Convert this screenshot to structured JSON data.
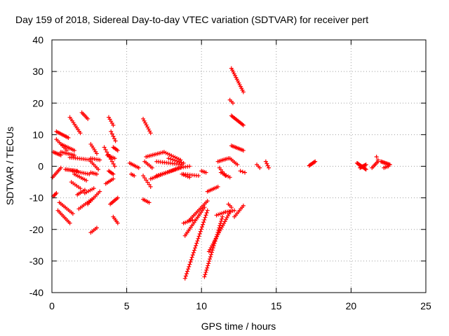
{
  "chart_data": {
    "type": "scatter",
    "title": "Day 159 of 2018, Sidereal Day-to-day VTEC variation (SDTVAR) for receiver pert",
    "xlabel": "GPS time / hours",
    "ylabel": "SDTVAR / TECUs",
    "xlim": [
      0,
      25
    ],
    "ylim": [
      -40,
      40
    ],
    "xticks": [
      0,
      5,
      10,
      15,
      20,
      25
    ],
    "xtick_labels": [
      "0",
      "5",
      "10",
      "15",
      "20",
      "25"
    ],
    "yticks": [
      -40,
      -30,
      -20,
      -10,
      0,
      10,
      20,
      30,
      40
    ],
    "ytick_labels": [
      "-40",
      "-30",
      "-20",
      "-10",
      "0",
      "10",
      "20",
      "30",
      "40"
    ],
    "grid": true,
    "marker": "+",
    "colors": {
      "series": "#ff0000",
      "axis": "#000000",
      "grid": "#a0a0a0"
    },
    "series": [
      {
        "name": "SDTVAR",
        "arcs": [
          {
            "x": [
              0.05,
              0.6
            ],
            "y": [
              -3.5,
              -0.5
            ],
            "n": 8
          },
          {
            "x": [
              0.1,
              0.6
            ],
            "y": [
              4.5,
              3.5
            ],
            "n": 7
          },
          {
            "x": [
              0.1,
              0.3
            ],
            "y": [
              -9.5,
              -8.5
            ],
            "n": 4
          },
          {
            "x": [
              0.3,
              1.1
            ],
            "y": [
              11.0,
              9.0
            ],
            "n": 10
          },
          {
            "x": [
              0.3,
              1.0
            ],
            "y": [
              8.5,
              5.0
            ],
            "n": 8
          },
          {
            "x": [
              0.4,
              1.2
            ],
            "y": [
              -14.0,
              -18.0
            ],
            "n": 10
          },
          {
            "x": [
              0.5,
              1.4
            ],
            "y": [
              -11.5,
              -15.0
            ],
            "n": 10
          },
          {
            "x": [
              0.6,
              1.5
            ],
            "y": [
              4.5,
              3.5
            ],
            "n": 10
          },
          {
            "x": [
              0.6,
              1.5
            ],
            "y": [
              7.0,
              5.0
            ],
            "n": 10
          },
          {
            "x": [
              0.9,
              1.7
            ],
            "y": [
              -1.0,
              -1.5
            ],
            "n": 10
          },
          {
            "x": [
              1.2,
              1.9
            ],
            "y": [
              15.5,
              10.5
            ],
            "n": 10
          },
          {
            "x": [
              1.2,
              2.6
            ],
            "y": [
              2.8,
              2.0
            ],
            "n": 12
          },
          {
            "x": [
              1.3,
              1.9
            ],
            "y": [
              -5.0,
              -7.0
            ],
            "n": 6
          },
          {
            "x": [
              1.4,
              2.5
            ],
            "y": [
              -1.5,
              -2.5
            ],
            "n": 10
          },
          {
            "x": [
              1.5,
              2.3
            ],
            "y": [
              -2.5,
              -4.5
            ],
            "n": 8
          },
          {
            "x": [
              1.7,
              2.2
            ],
            "y": [
              -9.0,
              -7.5
            ],
            "n": 6
          },
          {
            "x": [
              1.8,
              2.8
            ],
            "y": [
              -13.5,
              -10.0
            ],
            "n": 10
          },
          {
            "x": [
              2.0,
              2.4
            ],
            "y": [
              17.0,
              15.0
            ],
            "n": 6
          },
          {
            "x": [
              2.2,
              2.8
            ],
            "y": [
              -8.5,
              -7.0
            ],
            "n": 6
          },
          {
            "x": [
              2.4,
              3.2
            ],
            "y": [
              -12.0,
              -8.0
            ],
            "n": 9
          },
          {
            "x": [
              2.6,
              3.1
            ],
            "y": [
              1.5,
              -1.0
            ],
            "n": 6
          },
          {
            "x": [
              2.6,
              3.2
            ],
            "y": [
              2.5,
              2.0
            ],
            "n": 6
          },
          {
            "x": [
              2.6,
              3.0
            ],
            "y": [
              -2.0,
              -2.5
            ],
            "n": 5
          },
          {
            "x": [
              2.6,
              3.0
            ],
            "y": [
              7.0,
              4.0
            ],
            "n": 6
          },
          {
            "x": [
              2.6,
              3.0
            ],
            "y": [
              -21.0,
              -19.5
            ],
            "n": 5
          },
          {
            "x": [
              3.5,
              4.2
            ],
            "y": [
              6.0,
              0.0
            ],
            "n": 9
          },
          {
            "x": [
              3.6,
              4.1
            ],
            "y": [
              -5.5,
              -4.0
            ],
            "n": 6
          },
          {
            "x": [
              3.7,
              4.2
            ],
            "y": [
              3.5,
              2.5
            ],
            "n": 6
          },
          {
            "x": [
              3.8,
              4.1
            ],
            "y": [
              -1.5,
              -2.5
            ],
            "n": 5
          },
          {
            "x": [
              3.8,
              4.1
            ],
            "y": [
              15.5,
              13.0
            ],
            "n": 5
          },
          {
            "x": [
              3.9,
              4.4
            ],
            "y": [
              -12.0,
              -10.0
            ],
            "n": 7
          },
          {
            "x": [
              3.95,
              4.25
            ],
            "y": [
              11.0,
              8.0
            ],
            "n": 5
          },
          {
            "x": [
              4.1,
              4.4
            ],
            "y": [
              -16.0,
              -18.0
            ],
            "n": 5
          },
          {
            "x": [
              4.1,
              4.4
            ],
            "y": [
              6.0,
              5.0
            ],
            "n": 5
          },
          {
            "x": [
              5.2,
              5.8
            ],
            "y": [
              1.0,
              -0.5
            ],
            "n": 7
          },
          {
            "x": [
              5.3,
              5.5
            ],
            "y": [
              -2.5,
              -3.0
            ],
            "n": 3
          },
          {
            "x": [
              6.1,
              6.6
            ],
            "y": [
              15.0,
              10.5
            ],
            "n": 8
          },
          {
            "x": [
              6.1,
              6.6
            ],
            "y": [
              -3.0,
              -6.5
            ],
            "n": 6
          },
          {
            "x": [
              6.1,
              6.5
            ],
            "y": [
              -10.5,
              -11.5
            ],
            "n": 5
          },
          {
            "x": [
              6.2,
              6.7
            ],
            "y": [
              1.5,
              -0.5
            ],
            "n": 6
          },
          {
            "x": [
              6.3,
              7.5
            ],
            "y": [
              3.0,
              4.5
            ],
            "n": 12
          },
          {
            "x": [
              6.6,
              8.5
            ],
            "y": [
              -4.0,
              -0.5
            ],
            "n": 18
          },
          {
            "x": [
              7.0,
              8.6
            ],
            "y": [
              -3.0,
              -0.5
            ],
            "n": 14
          },
          {
            "x": [
              7.0,
              8.7
            ],
            "y": [
              1.5,
              0.5
            ],
            "n": 14
          },
          {
            "x": [
              7.5,
              8.6
            ],
            "y": [
              4.5,
              2.0
            ],
            "n": 10
          },
          {
            "x": [
              7.8,
              8.8
            ],
            "y": [
              2.5,
              1.0
            ],
            "n": 8
          },
          {
            "x": [
              8.5,
              9.2
            ],
            "y": [
              -0.5,
              0.0
            ],
            "n": 6
          },
          {
            "x": [
              8.7,
              9.2
            ],
            "y": [
              -2.5,
              -3.5
            ],
            "n": 5
          },
          {
            "x": [
              8.8,
              9.8
            ],
            "y": [
              -2.5,
              -3.0
            ],
            "n": 8
          },
          {
            "x": [
              8.8,
              9.4
            ],
            "y": [
              -18.0,
              -17.0
            ],
            "n": 6
          },
          {
            "x": [
              8.9,
              10.4
            ],
            "y": [
              -35.5,
              -14.0
            ],
            "n": 30
          },
          {
            "x": [
              8.9,
              10.2
            ],
            "y": [
              -22.0,
              -13.0
            ],
            "n": 18
          },
          {
            "x": [
              9.2,
              10.4
            ],
            "y": [
              -17.0,
              -11.0
            ],
            "n": 14
          },
          {
            "x": [
              10.0,
              10.3
            ],
            "y": [
              -1.5,
              -2.0
            ],
            "n": 4
          },
          {
            "x": [
              10.2,
              11.4
            ],
            "y": [
              -35.0,
              -16.0
            ],
            "n": 28
          },
          {
            "x": [
              10.4,
              11.1
            ],
            "y": [
              -8.0,
              -6.5
            ],
            "n": 8
          },
          {
            "x": [
              10.5,
              11.9
            ],
            "y": [
              -27.0,
              -14.5
            ],
            "n": 22
          },
          {
            "x": [
              11.0,
              11.6
            ],
            "y": [
              -15.5,
              -14.5
            ],
            "n": 6
          },
          {
            "x": [
              11.1,
              11.8
            ],
            "y": [
              1.5,
              2.5
            ],
            "n": 8
          },
          {
            "x": [
              11.2,
              11.6
            ],
            "y": [
              -0.5,
              -3.0
            ],
            "n": 5
          },
          {
            "x": [
              11.3,
              11.9
            ],
            "y": [
              -2.0,
              -3.5
            ],
            "n": 6
          },
          {
            "x": [
              11.6,
              12.2
            ],
            "y": [
              -14.5,
              -14.0
            ],
            "n": 6
          },
          {
            "x": [
              11.8,
              12.0
            ],
            "y": [
              -12.0,
              -13.0
            ],
            "n": 3
          },
          {
            "x": [
              11.9,
              12.1
            ],
            "y": [
              21.0,
              20.0
            ],
            "n": 3
          },
          {
            "x": [
              11.9,
              12.4
            ],
            "y": [
              2.5,
              0.5
            ],
            "n": 6
          },
          {
            "x": [
              12.0,
              12.8
            ],
            "y": [
              31.0,
              23.5
            ],
            "n": 14
          },
          {
            "x": [
              12.0,
              12.8
            ],
            "y": [
              16.0,
              13.0
            ],
            "n": 12
          },
          {
            "x": [
              12.0,
              12.8
            ],
            "y": [
              6.5,
              5.0
            ],
            "n": 10
          },
          {
            "x": [
              12.2,
              12.8
            ],
            "y": [
              -16.0,
              -12.5
            ],
            "n": 8
          },
          {
            "x": [
              12.6,
              12.9
            ],
            "y": [
              -1.5,
              -2.0
            ],
            "n": 3
          },
          {
            "x": [
              13.7,
              13.9
            ],
            "y": [
              0.5,
              -0.5
            ],
            "n": 3
          },
          {
            "x": [
              14.3,
              14.5
            ],
            "y": [
              1.5,
              -0.5
            ],
            "n": 4
          },
          {
            "x": [
              17.2,
              17.6
            ],
            "y": [
              0.2,
              1.5
            ],
            "n": 8
          },
          {
            "x": [
              20.4,
              21.0
            ],
            "y": [
              1.0,
              -1.0
            ],
            "n": 12
          },
          {
            "x": [
              20.6,
              21.0
            ],
            "y": [
              -0.5,
              0.5
            ],
            "n": 8
          },
          {
            "x": [
              21.4,
              21.8
            ],
            "y": [
              -0.5,
              1.5
            ],
            "n": 6
          },
          {
            "x": [
              21.7,
              21.8
            ],
            "y": [
              3.0,
              2.0
            ],
            "n": 2
          },
          {
            "x": [
              22.0,
              22.6
            ],
            "y": [
              1.5,
              0.5
            ],
            "n": 10
          },
          {
            "x": [
              22.2,
              22.5
            ],
            "y": [
              -0.5,
              0.0
            ],
            "n": 4
          }
        ]
      }
    ]
  }
}
